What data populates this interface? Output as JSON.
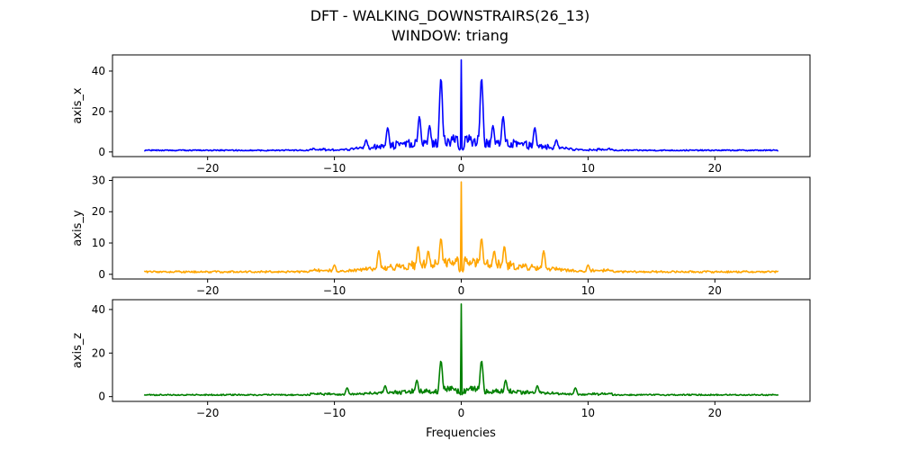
{
  "title_line1": "DFT - WALKING_DOWNSTRAIRS(26_13)",
  "title_line2": "WINDOW: triang",
  "xlabel": "Frequencies",
  "chart_data": [
    {
      "type": "line",
      "name": "axis_x",
      "ylabel": "axis_x",
      "color": "#0000ff",
      "xlim": [
        -27.5,
        27.5
      ],
      "ylim": [
        -2.3,
        48
      ],
      "xticks": [
        -20,
        -10,
        0,
        10,
        20
      ],
      "yticks": [
        0,
        20,
        40
      ],
      "xtick_labels": [
        "−20",
        "−10",
        "0",
        "10",
        "20"
      ],
      "ytick_labels": [
        "0",
        "20",
        "40"
      ],
      "grid": false,
      "peaks": [
        [
          0,
          45.5
        ],
        [
          -1.6,
          36.5
        ],
        [
          1.6,
          36.5
        ],
        [
          -3.3,
          17.5
        ],
        [
          3.3,
          17.5
        ],
        [
          -5.8,
          12
        ],
        [
          5.8,
          12
        ],
        [
          -2.5,
          13
        ],
        [
          2.5,
          13
        ],
        [
          -7.5,
          6
        ],
        [
          7.5,
          6
        ]
      ],
      "x_range": [
        -25,
        25
      ]
    },
    {
      "type": "line",
      "name": "axis_y",
      "ylabel": "axis_y",
      "color": "#ffa500",
      "xlim": [
        -27.5,
        27.5
      ],
      "ylim": [
        -1.5,
        31
      ],
      "xticks": [
        -20,
        -10,
        0,
        10,
        20
      ],
      "yticks": [
        0,
        10,
        20,
        30
      ],
      "xtick_labels": [
        "−20",
        "−10",
        "0",
        "10",
        "20"
      ],
      "ytick_labels": [
        "0",
        "10",
        "20",
        "30"
      ],
      "grid": false,
      "peaks": [
        [
          0,
          29.5
        ],
        [
          -1.6,
          11.5
        ],
        [
          1.6,
          11.5
        ],
        [
          -3.4,
          9
        ],
        [
          3.4,
          9
        ],
        [
          -6.5,
          7.5
        ],
        [
          6.5,
          7.5
        ],
        [
          -2.6,
          7.5
        ],
        [
          2.6,
          7.5
        ],
        [
          -10,
          3
        ],
        [
          10,
          3
        ]
      ],
      "x_range": [
        -25,
        25
      ]
    },
    {
      "type": "line",
      "name": "axis_z",
      "ylabel": "axis_z",
      "color": "#008000",
      "xlim": [
        -27.5,
        27.5
      ],
      "ylim": [
        -2.2,
        44.5
      ],
      "xticks": [
        -20,
        -10,
        0,
        10,
        20
      ],
      "yticks": [
        0,
        20,
        40
      ],
      "xtick_labels": [
        "−20",
        "−10",
        "0",
        "10",
        "20"
      ],
      "ytick_labels": [
        "0",
        "20",
        "40"
      ],
      "grid": false,
      "peaks": [
        [
          0,
          42.5
        ],
        [
          -1.6,
          16.5
        ],
        [
          1.6,
          16.5
        ],
        [
          -3.5,
          7.5
        ],
        [
          3.5,
          7.5
        ],
        [
          -6,
          5
        ],
        [
          6,
          5
        ],
        [
          -9,
          4
        ],
        [
          9,
          4
        ]
      ],
      "x_range": [
        -25,
        25
      ]
    }
  ]
}
